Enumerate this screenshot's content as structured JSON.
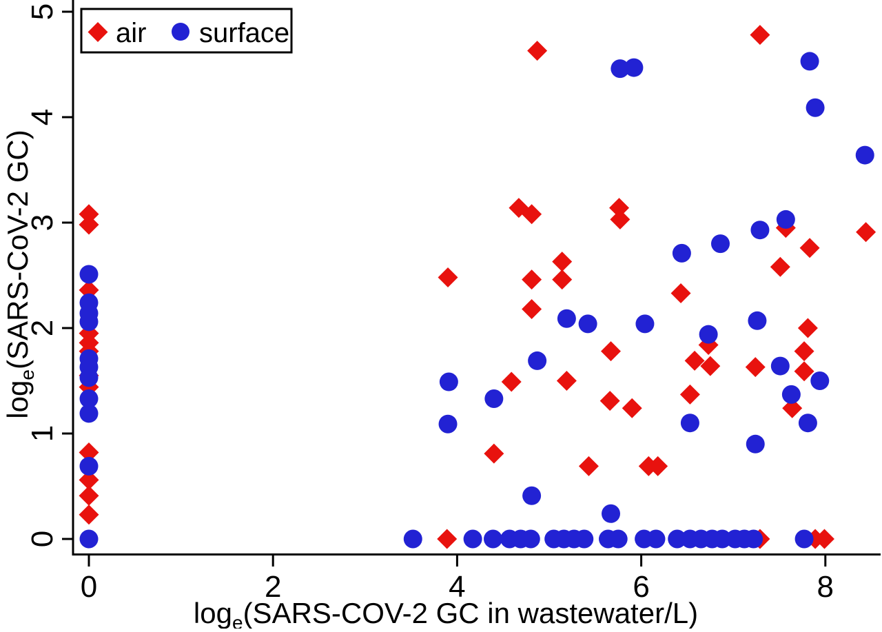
{
  "figure": {
    "background": "#ffffff"
  },
  "chart_data": {
    "type": "scatter",
    "title": "",
    "xlabel": {
      "prefix": "log",
      "sub": "e",
      "rest": "(SARS-COV-2 GC in wastewater/L)"
    },
    "ylabel": {
      "prefix": "log",
      "sub": "e",
      "rest": "(SARS-CoV-2 GC)"
    },
    "xticks": [
      0,
      2,
      4,
      6,
      8
    ],
    "yticks": [
      0,
      1,
      2,
      3,
      4,
      5
    ],
    "xlim": [
      -0.2,
      8.62
    ],
    "ylim": [
      -0.15,
      5.12
    ],
    "grid": false,
    "legend": {
      "position": "top-left",
      "entries": [
        {
          "label": "air",
          "marker": "diamond"
        },
        {
          "label": "surface",
          "marker": "circle"
        }
      ]
    },
    "series": [
      {
        "name": "air",
        "marker": "diamond",
        "color": "#e8120e",
        "points": [
          [
            0,
            3.08
          ],
          [
            0,
            2.98
          ],
          [
            0,
            2.36
          ],
          [
            0,
            1.95
          ],
          [
            0,
            1.86
          ],
          [
            0,
            1.78
          ],
          [
            0,
            1.55
          ],
          [
            0,
            1.44
          ],
          [
            0,
            0.82
          ],
          [
            0,
            0.56
          ],
          [
            0,
            0.41
          ],
          [
            0,
            0.23
          ],
          [
            4.87,
            4.63
          ],
          [
            7.29,
            4.78
          ],
          [
            4.67,
            3.14
          ],
          [
            4.81,
            3.08
          ],
          [
            5.76,
            3.14
          ],
          [
            5.77,
            3.03
          ],
          [
            7.57,
            2.95
          ],
          [
            8.44,
            2.91
          ],
          [
            7.83,
            2.76
          ],
          [
            7.51,
            2.58
          ],
          [
            5.14,
            2.63
          ],
          [
            3.9,
            2.48
          ],
          [
            4.81,
            2.46
          ],
          [
            5.14,
            2.46
          ],
          [
            6.43,
            2.33
          ],
          [
            4.81,
            2.18
          ],
          [
            7.81,
            2.0
          ],
          [
            6.73,
            1.84
          ],
          [
            7.77,
            1.78
          ],
          [
            5.67,
            1.78
          ],
          [
            6.58,
            1.69
          ],
          [
            6.75,
            1.64
          ],
          [
            7.24,
            1.63
          ],
          [
            7.77,
            1.59
          ],
          [
            4.59,
            1.49
          ],
          [
            5.19,
            1.5
          ],
          [
            6.53,
            1.37
          ],
          [
            5.66,
            1.31
          ],
          [
            5.9,
            1.24
          ],
          [
            7.64,
            1.24
          ],
          [
            4.4,
            0.81
          ],
          [
            5.43,
            0.69
          ],
          [
            6.08,
            0.69
          ],
          [
            6.18,
            0.69
          ],
          [
            3.89,
            0
          ],
          [
            7.29,
            0
          ],
          [
            7.89,
            0
          ],
          [
            7.99,
            0
          ]
        ]
      },
      {
        "name": "surface",
        "marker": "circle",
        "color": "#2222d3",
        "points": [
          [
            0,
            2.51
          ],
          [
            0,
            2.24
          ],
          [
            0,
            2.14
          ],
          [
            0,
            2.06
          ],
          [
            0,
            1.71
          ],
          [
            0,
            1.63
          ],
          [
            0,
            1.53
          ],
          [
            0,
            1.33
          ],
          [
            0,
            1.19
          ],
          [
            0,
            0.69
          ],
          [
            0,
            0
          ],
          [
            5.77,
            4.46
          ],
          [
            5.92,
            4.47
          ],
          [
            7.83,
            4.53
          ],
          [
            7.89,
            4.09
          ],
          [
            8.43,
            3.64
          ],
          [
            7.57,
            3.03
          ],
          [
            7.29,
            2.93
          ],
          [
            6.86,
            2.8
          ],
          [
            6.44,
            2.71
          ],
          [
            5.19,
            2.09
          ],
          [
            5.42,
            2.04
          ],
          [
            6.04,
            2.04
          ],
          [
            7.26,
            2.07
          ],
          [
            6.73,
            1.94
          ],
          [
            4.87,
            1.69
          ],
          [
            7.51,
            1.64
          ],
          [
            3.91,
            1.49
          ],
          [
            7.94,
            1.5
          ],
          [
            4.4,
            1.33
          ],
          [
            7.63,
            1.37
          ],
          [
            3.9,
            1.09
          ],
          [
            6.53,
            1.1
          ],
          [
            7.81,
            1.1
          ],
          [
            7.24,
            0.9
          ],
          [
            4.81,
            0.41
          ],
          [
            5.67,
            0.24
          ],
          [
            3.52,
            0
          ],
          [
            4.17,
            0
          ],
          [
            4.39,
            0
          ],
          [
            4.57,
            0
          ],
          [
            4.69,
            0
          ],
          [
            4.8,
            0
          ],
          [
            5.05,
            0
          ],
          [
            5.16,
            0
          ],
          [
            5.27,
            0
          ],
          [
            5.38,
            0
          ],
          [
            5.64,
            0
          ],
          [
            5.75,
            0
          ],
          [
            6.03,
            0
          ],
          [
            6.16,
            0
          ],
          [
            6.39,
            0
          ],
          [
            6.53,
            0
          ],
          [
            6.65,
            0
          ],
          [
            6.77,
            0
          ],
          [
            6.88,
            0
          ],
          [
            7.02,
            0
          ],
          [
            7.12,
            0
          ],
          [
            7.22,
            0
          ],
          [
            7.77,
            0
          ]
        ]
      }
    ]
  }
}
